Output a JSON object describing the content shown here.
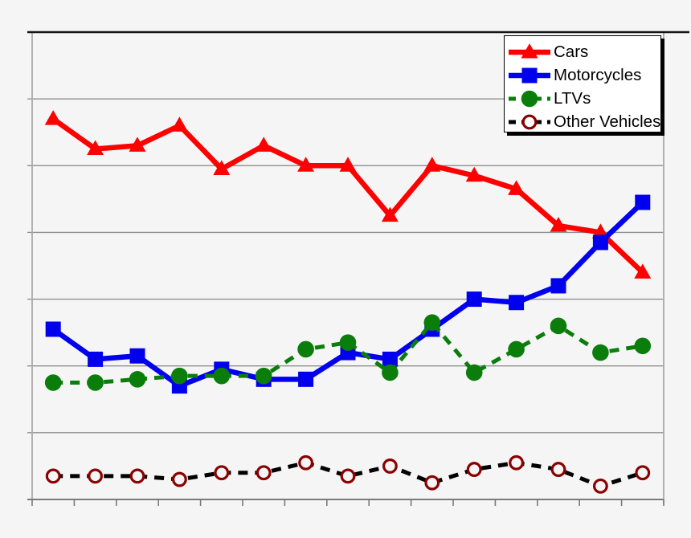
{
  "chart_data": {
    "type": "line",
    "title": "",
    "xlabel": "",
    "ylabel": "",
    "x": [
      1,
      2,
      3,
      4,
      5,
      6,
      7,
      8,
      9,
      10,
      11,
      12,
      13,
      14,
      15
    ],
    "x_tick_labels_visible": false,
    "y_tick_labels_visible": false,
    "ylim": [
      0,
      70
    ],
    "y_gridline_interval": 10,
    "grid": true,
    "legend_position": "top-right",
    "series": [
      {
        "name": "Cars",
        "color": "#ff0000",
        "line": "solid",
        "marker": "triangle",
        "values": [
          57,
          52.5,
          53,
          56,
          49.5,
          53,
          50,
          50,
          42.5,
          50,
          48.5,
          46.5,
          41,
          40,
          34
        ]
      },
      {
        "name": "Motorcycles",
        "color": "#0000ee",
        "line": "solid",
        "marker": "square",
        "values": [
          25.5,
          21,
          21.5,
          17,
          19.5,
          18,
          18,
          22,
          21,
          25.5,
          30,
          29.5,
          32,
          38.5,
          44.5
        ]
      },
      {
        "name": "LTVs",
        "color": "#0b7d0b",
        "line": "dashed",
        "marker": "circle",
        "values": [
          17.5,
          17.5,
          18,
          18.5,
          18.5,
          18.5,
          22.5,
          23.5,
          19,
          26.5,
          19,
          22.5,
          26,
          22,
          23
        ]
      },
      {
        "name": "Other Vehicles",
        "color": "#000000",
        "line": "dashed",
        "marker": "open-circle",
        "marker_color": "#8b0000",
        "values": [
          3.5,
          3.5,
          3.5,
          3,
          4,
          4,
          5.5,
          3.5,
          5,
          2.5,
          4.5,
          5.5,
          4.5,
          2,
          4
        ]
      }
    ]
  },
  "colors": {
    "background": "#f5f5f6",
    "gridline": "#8f8f8f",
    "axis_side": "#ababab",
    "axis_bottom": "#7a7a7a",
    "border_top": "#151515",
    "legend_background": "#ffffff",
    "legend_border": "#000000",
    "legend_shadow": "#000000"
  }
}
